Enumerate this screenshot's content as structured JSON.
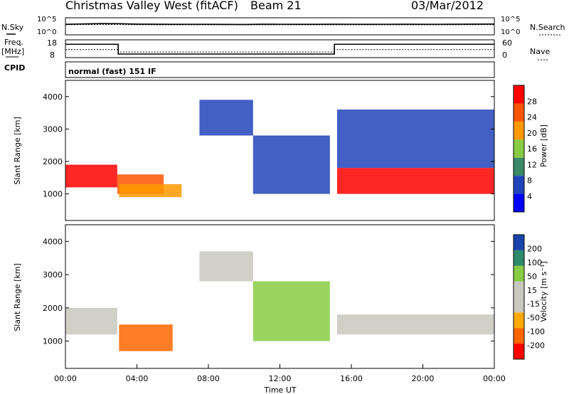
{
  "header": {
    "station": "Christmas Valley West (fitACF)",
    "beam": "Beam 21",
    "date": "03/Mar/2012"
  },
  "labels": {
    "nsky": "N.Sky",
    "nsearch": "N.Search",
    "freq": "Freq.",
    "freq_unit": "[MHz]",
    "nave": "Nave",
    "cpid": "CPID",
    "mode": "normal (fast) 151 IF",
    "pow10_5": "10^5",
    "pow10_0": "10^0"
  },
  "chart_data": [
    {
      "type": "line",
      "panel": "noise",
      "series": [
        {
          "name": "N.Sky",
          "values": [
            1200,
            1600,
            2000,
            1900,
            1400,
            1300,
            1200,
            1250,
            1200,
            1150,
            1100,
            1300,
            1250,
            1200,
            1200,
            1300,
            1250,
            1200,
            1250,
            1300,
            1200,
            1250,
            1300,
            1400,
            1500
          ]
        },
        {
          "name": "N.Search",
          "values": [
            900,
            1000,
            1100,
            1000,
            950,
            900,
            900,
            900,
            880,
            860,
            850,
            900,
            880,
            870,
            870,
            900,
            880,
            870,
            880,
            900,
            870,
            880,
            900,
            950,
            1000
          ]
        }
      ],
      "x": [
        0,
        1,
        2,
        3,
        4,
        5,
        6,
        7,
        8,
        9,
        10,
        11,
        12,
        13,
        14,
        15,
        16,
        17,
        18,
        19,
        20,
        21,
        22,
        23,
        24
      ],
      "y_tick_labels": [
        "10^0",
        "10^5"
      ]
    },
    {
      "type": "line",
      "panel": "frequency",
      "segments": [
        {
          "x0": 0,
          "x1": 2.95,
          "freq": 15.5
        },
        {
          "x0": 2.95,
          "x1": 15.05,
          "freq": 10.0
        },
        {
          "x0": 15.05,
          "x1": 24,
          "freq": 15.5
        }
      ],
      "nave_segments": [
        {
          "x0": 0,
          "x1": 2.95,
          "nave": 27
        },
        {
          "x0": 2.95,
          "x1": 15.05,
          "nave": 19
        },
        {
          "x0": 15.05,
          "x1": 24,
          "nave": 27
        }
      ],
      "yticks_left": [
        "18",
        "8"
      ],
      "yticks_right": [
        "60",
        "0"
      ]
    },
    {
      "type": "heatmap",
      "panel": "power",
      "xlabel": "",
      "ylabel": "Slant Range [km]",
      "colorbar_label": "Power [dB]",
      "colorbar_ticks": [
        "4",
        "8",
        "12",
        "16",
        "20",
        "24",
        "28"
      ],
      "colors": [
        "#0000ff",
        "#2244bb",
        "#3a8a6a",
        "#88cc44",
        "#ff9900",
        "#ff5500",
        "#ff0000"
      ],
      "yticks": [
        "1000",
        "2000",
        "3000",
        "4000"
      ],
      "ylim": [
        180,
        4500
      ],
      "regions": [
        {
          "x0": 0.0,
          "x1": 2.9,
          "y0": 1200,
          "y1": 1900,
          "level": 6
        },
        {
          "x0": 2.9,
          "x1": 5.5,
          "y0": 1000,
          "y1": 1600,
          "level": 5
        },
        {
          "x0": 3.0,
          "x1": 6.5,
          "y0": 900,
          "y1": 1300,
          "level": 4
        },
        {
          "x0": 7.5,
          "x1": 10.5,
          "y0": 2800,
          "y1": 3900,
          "level": 1
        },
        {
          "x0": 10.5,
          "x1": 14.8,
          "y0": 1000,
          "y1": 2800,
          "level": 1
        },
        {
          "x0": 15.2,
          "x1": 24.0,
          "y0": 1000,
          "y1": 1800,
          "level": 6
        },
        {
          "x0": 15.2,
          "x1": 24.0,
          "y0": 1800,
          "y1": 3600,
          "level": 1
        }
      ]
    },
    {
      "type": "heatmap",
      "panel": "velocity",
      "xlabel": "Time UT",
      "ylabel": "Slant Range [km]",
      "colorbar_label": "Velocity [m s⁻¹]",
      "colorbar_ticks": [
        "-200",
        "-100",
        "-50",
        "-15",
        "15",
        "50",
        "100",
        "200"
      ],
      "colors": [
        "#ff0000",
        "#ff6600",
        "#ffaa00",
        "#c8c8c0",
        "#c8c8c0",
        "#88cc44",
        "#2d8a6a",
        "#1a44aa"
      ],
      "xticks": [
        "00:00",
        "04:00",
        "08:00",
        "12:00",
        "16:00",
        "20:00",
        "00:00"
      ],
      "yticks": [
        "1000",
        "2000",
        "3000",
        "4000"
      ],
      "ylim": [
        180,
        4500
      ],
      "regions": [
        {
          "x0": 0.0,
          "x1": 2.9,
          "y0": 1200,
          "y1": 2000,
          "level": 3
        },
        {
          "x0": 3.0,
          "x1": 6.0,
          "y0": 700,
          "y1": 1500,
          "level": 1
        },
        {
          "x0": 7.5,
          "x1": 10.5,
          "y0": 2800,
          "y1": 3700,
          "level": 3
        },
        {
          "x0": 10.5,
          "x1": 14.8,
          "y0": 1000,
          "y1": 2800,
          "level": 5
        },
        {
          "x0": 15.2,
          "x1": 24.0,
          "y0": 1200,
          "y1": 1800,
          "level": 3
        }
      ]
    }
  ]
}
